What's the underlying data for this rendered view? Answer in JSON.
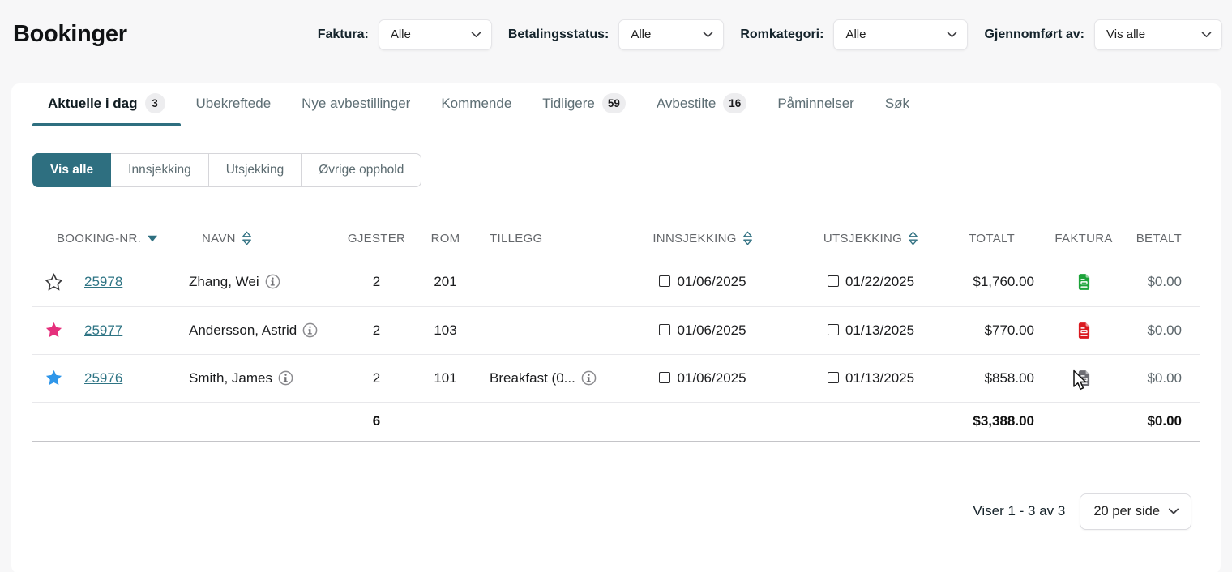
{
  "page": {
    "title": "Bookinger",
    "background": "#f7f7f8"
  },
  "colors": {
    "accent": "#2e6f80",
    "link": "#2e7484",
    "star_pink": "#e5307c",
    "star_blue": "#2f96e9",
    "invoice_green": "#1da33a",
    "invoice_red": "#da1a20",
    "invoice_gray": "#6e6e74"
  },
  "filters": [
    {
      "label": "Faktura:",
      "value": "Alle"
    },
    {
      "label": "Betalingsstatus:",
      "value": "Alle"
    },
    {
      "label": "Romkategori:",
      "value": "Alle"
    },
    {
      "label": "Gjennomført av:",
      "value": "Vis alle"
    }
  ],
  "tabs": [
    {
      "label": "Aktuelle i dag",
      "badge": "3",
      "active": true
    },
    {
      "label": "Ubekreftede"
    },
    {
      "label": "Nye avbestillinger"
    },
    {
      "label": "Kommende"
    },
    {
      "label": "Tidligere",
      "badge": "59"
    },
    {
      "label": "Avbestilte",
      "badge": "16"
    },
    {
      "label": "Påminnelser"
    },
    {
      "label": "Søk"
    }
  ],
  "segments": [
    {
      "label": "Vis alle",
      "active": true
    },
    {
      "label": "Innsjekking"
    },
    {
      "label": "Utsjekking"
    },
    {
      "label": "Øvrige opphold"
    }
  ],
  "table": {
    "columns": [
      {
        "label": "BOOKING-NR.",
        "sort": "desc"
      },
      {
        "label": "NAVN",
        "sort": "both"
      },
      {
        "label": "GJESTER"
      },
      {
        "label": "ROM"
      },
      {
        "label": "TILLEGG"
      },
      {
        "label": "INNSJEKKING",
        "sort": "both"
      },
      {
        "label": "UTSJEKKING",
        "sort": "both"
      },
      {
        "label": "TOTALT"
      },
      {
        "label": "FAKTURA"
      },
      {
        "label": "BETALT"
      }
    ],
    "rows": [
      {
        "star": "outline",
        "booking_nr": "25978",
        "name": "Zhang, Wei",
        "guests": "2",
        "room": "201",
        "addons": "",
        "checkin": "01/06/2025",
        "checkout": "01/22/2025",
        "total": "$1,760.00",
        "invoice": "green",
        "paid": "$0.00"
      },
      {
        "star": "pink",
        "booking_nr": "25977",
        "name": "Andersson, Astrid",
        "guests": "2",
        "room": "103",
        "addons": "",
        "checkin": "01/06/2025",
        "checkout": "01/13/2025",
        "total": "$770.00",
        "invoice": "red",
        "paid": "$0.00"
      },
      {
        "star": "blue",
        "booking_nr": "25976",
        "name": "Smith, James",
        "guests": "2",
        "room": "101",
        "addons": "Breakfast (0...",
        "checkin": "01/06/2025",
        "checkout": "01/13/2025",
        "total": "$858.00",
        "invoice": "gray",
        "paid": "$0.00"
      }
    ],
    "totals": {
      "guests": "6",
      "total": "$3,388.00",
      "paid": "$0.00"
    }
  },
  "pagination": {
    "summary": "Viser 1 - 3 av 3",
    "page_size": "20 per side"
  }
}
